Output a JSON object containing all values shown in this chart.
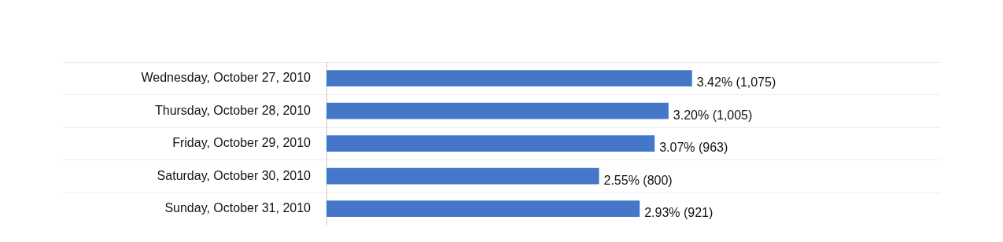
{
  "chart_data": {
    "type": "bar",
    "orientation": "horizontal",
    "categories": [
      "Wednesday, October 27, 2010",
      "Thursday, October 28, 2010",
      "Friday, October 29, 2010",
      "Saturday, October 30, 2010",
      "Sunday, October 31, 2010"
    ],
    "values": [
      3.42,
      3.2,
      3.07,
      2.55,
      2.93
    ],
    "value_labels": [
      "3.42% (1,075)",
      "3.20% (1,005)",
      "3.07% (963)",
      "2.55% (800)",
      "2.93% (921)"
    ],
    "color": "#4577c9",
    "xlim": [
      0,
      5.74
    ],
    "grid": "y",
    "legend": false
  }
}
